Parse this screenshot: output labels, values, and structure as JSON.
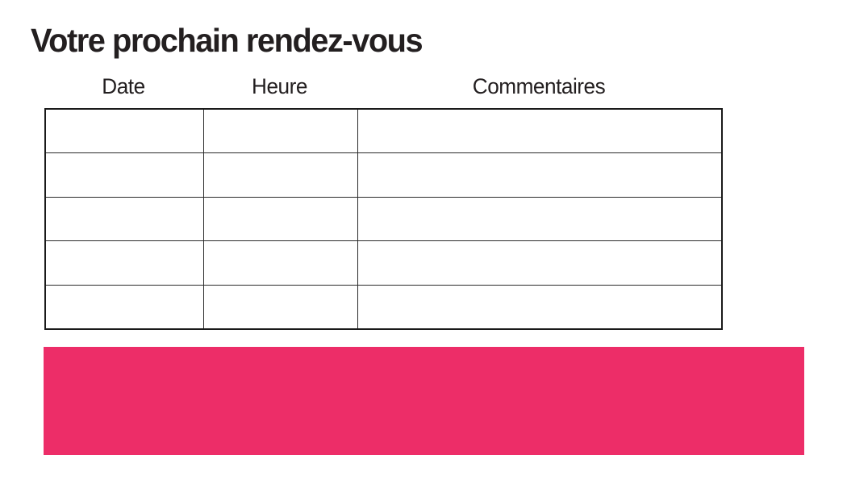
{
  "page": {
    "title": "Votre prochain rendez-vous"
  },
  "appointments_table": {
    "columns": [
      {
        "label": "Date"
      },
      {
        "label": "Heure"
      },
      {
        "label": "Commentaires"
      }
    ],
    "rows": [
      [
        "",
        "",
        ""
      ],
      [
        "",
        "",
        ""
      ],
      [
        "",
        "",
        ""
      ],
      [
        "",
        "",
        ""
      ],
      [
        "",
        "",
        ""
      ]
    ]
  },
  "banner": {
    "color": "#ED2D68"
  },
  "colors": {
    "text": "#231f20",
    "table_border": "#1a1a1a",
    "background": "#ffffff"
  }
}
